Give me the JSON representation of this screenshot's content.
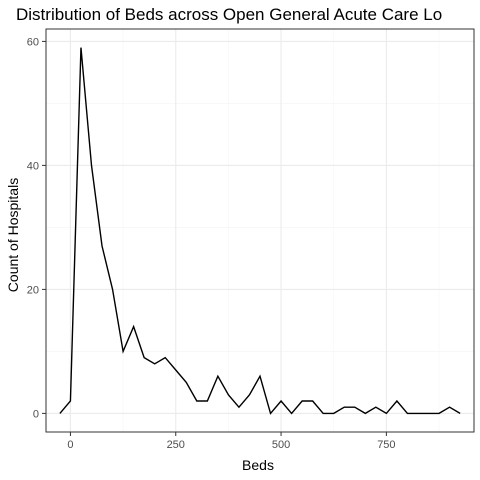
{
  "chart_data": {
    "type": "line",
    "title": "Distribution of Beds across Open General Acute Care Lo",
    "xlabel": "Beds",
    "ylabel": "Count of Hospitals",
    "xlim": [
      -58,
      958
    ],
    "ylim": [
      -3,
      62
    ],
    "xticks": [
      0,
      250,
      500,
      750
    ],
    "xtick_labels": [
      "0",
      "250",
      "500",
      "750"
    ],
    "yticks": [
      0,
      20,
      40,
      60
    ],
    "ytick_labels": [
      "0",
      "20",
      "40",
      "60"
    ],
    "grid": true,
    "legend": "none",
    "colors": {
      "line": "#000000",
      "grid_major": "#ebebeb",
      "grid_minor": "#f5f5f5",
      "panel_border": "#333333"
    },
    "series": [
      {
        "x": [
          -25,
          0,
          25,
          50,
          75,
          100,
          125,
          150,
          175,
          200,
          225,
          250,
          275,
          300,
          325,
          350,
          375,
          400,
          425,
          450,
          475,
          500,
          525,
          550,
          575,
          600,
          625,
          650,
          675,
          700,
          725,
          750,
          775,
          800,
          825,
          850,
          875,
          900,
          925
        ],
        "values": [
          0,
          2,
          59,
          40,
          27,
          20,
          10,
          14,
          9,
          8,
          9,
          7,
          5,
          2,
          2,
          6,
          3,
          1,
          3,
          6,
          0,
          2,
          0,
          2,
          2,
          0,
          0,
          1,
          1,
          0,
          1,
          0,
          2,
          0,
          0,
          0,
          0,
          1,
          0
        ]
      }
    ]
  }
}
